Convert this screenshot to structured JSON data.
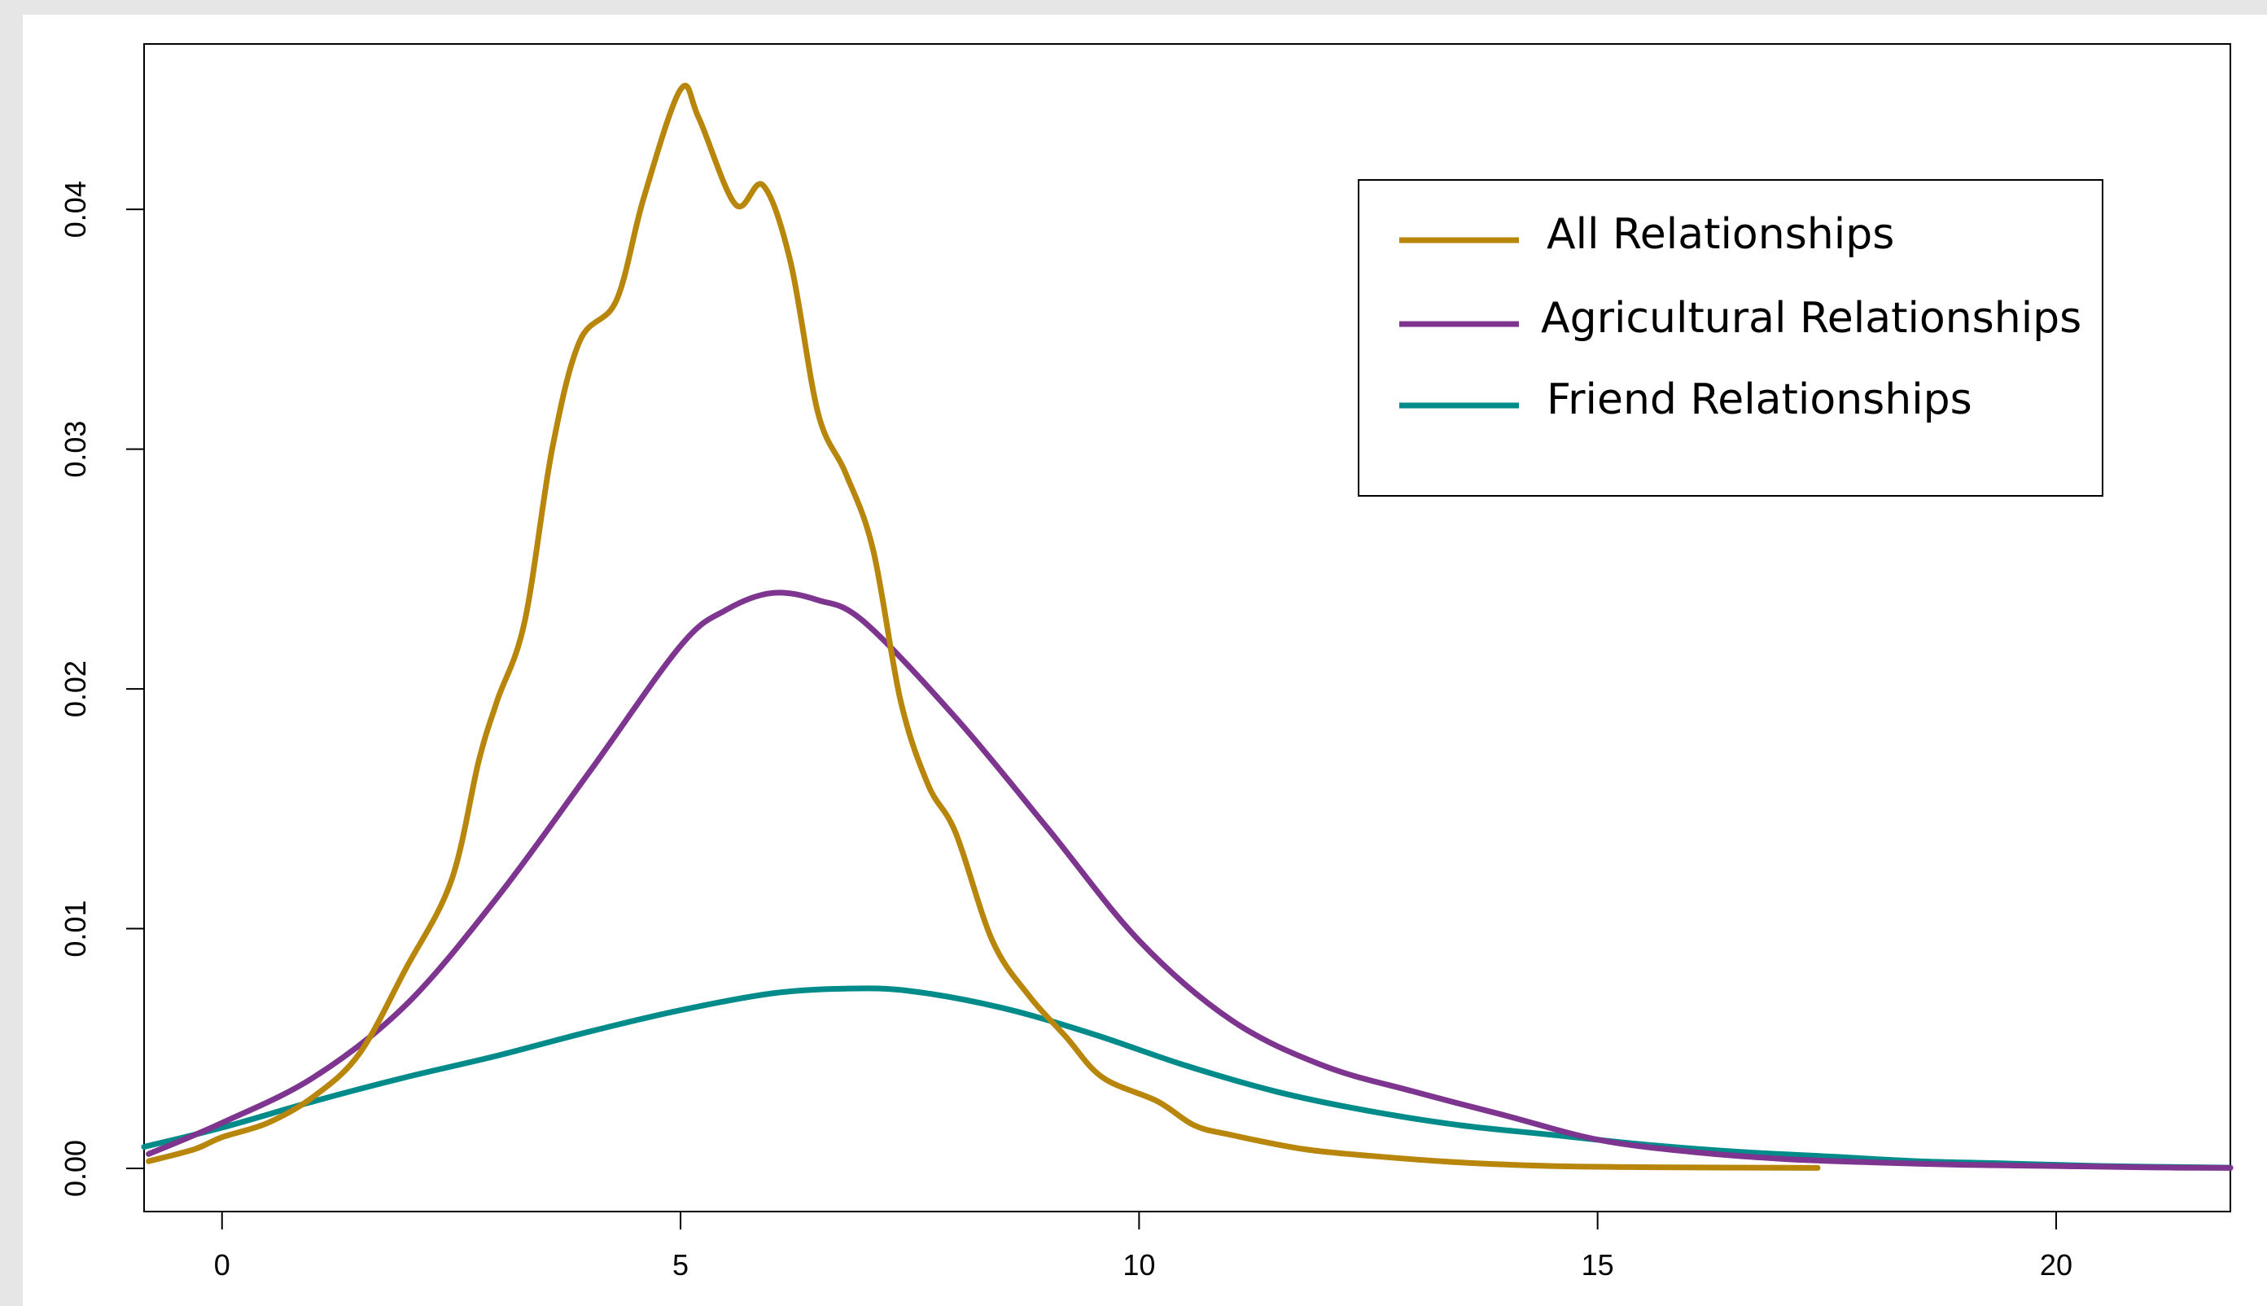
{
  "chart_data": {
    "type": "line",
    "title": "",
    "xlabel": "",
    "ylabel": "",
    "xlim": [
      -0.85,
      21.9
    ],
    "ylim": [
      -0.0018,
      0.0469
    ],
    "x_ticks": [
      0,
      5,
      10,
      15,
      20
    ],
    "x_tick_labels": [
      "0",
      "5",
      "10",
      "15",
      "20"
    ],
    "y_ticks": [
      0.0,
      0.01,
      0.02,
      0.03,
      0.04
    ],
    "y_tick_labels": [
      "0.00",
      "0.01",
      "0.02",
      "0.03",
      "0.04"
    ],
    "grid": false,
    "legend_position": "top-right",
    "series": [
      {
        "name": "All Relationships",
        "color": "#b8860b",
        "points": [
          [
            -0.8,
            0.0003
          ],
          [
            -0.3,
            0.0008
          ],
          [
            0,
            0.0013
          ],
          [
            0.5,
            0.0019
          ],
          [
            1.0,
            0.003
          ],
          [
            1.5,
            0.0048
          ],
          [
            2.0,
            0.0083
          ],
          [
            2.5,
            0.012
          ],
          [
            2.8,
            0.017
          ],
          [
            3.0,
            0.0195
          ],
          [
            3.3,
            0.0228
          ],
          [
            3.6,
            0.03
          ],
          [
            3.9,
            0.0345
          ],
          [
            4.3,
            0.0362
          ],
          [
            4.6,
            0.0405
          ],
          [
            5.0,
            0.045
          ],
          [
            5.2,
            0.0438
          ],
          [
            5.6,
            0.0402
          ],
          [
            5.9,
            0.041
          ],
          [
            6.2,
            0.0378
          ],
          [
            6.5,
            0.0315
          ],
          [
            6.8,
            0.029
          ],
          [
            7.1,
            0.0258
          ],
          [
            7.4,
            0.0195
          ],
          [
            7.7,
            0.016
          ],
          [
            8.0,
            0.014
          ],
          [
            8.4,
            0.0095
          ],
          [
            8.8,
            0.0072
          ],
          [
            9.2,
            0.0055
          ],
          [
            9.6,
            0.0038
          ],
          [
            10.2,
            0.0028
          ],
          [
            10.6,
            0.0018
          ],
          [
            11.0,
            0.0014
          ],
          [
            11.8,
            0.0008
          ],
          [
            12.6,
            0.0005
          ],
          [
            13.5,
            0.00025
          ],
          [
            14.5,
            0.0001
          ],
          [
            15.5,
            5e-05
          ],
          [
            17.4,
            2e-05
          ]
        ]
      },
      {
        "name": "Agricultural Relationships",
        "color": "#7d3590",
        "points": [
          [
            -0.8,
            0.0006
          ],
          [
            0,
            0.0019
          ],
          [
            1.0,
            0.0038
          ],
          [
            2.0,
            0.0068
          ],
          [
            3.0,
            0.0113
          ],
          [
            4.0,
            0.0165
          ],
          [
            5.0,
            0.0218
          ],
          [
            5.5,
            0.0233
          ],
          [
            6.0,
            0.024
          ],
          [
            6.5,
            0.0237
          ],
          [
            7.0,
            0.0228
          ],
          [
            8.0,
            0.0188
          ],
          [
            9.0,
            0.0142
          ],
          [
            10.0,
            0.0095
          ],
          [
            11.0,
            0.0062
          ],
          [
            12.0,
            0.0043
          ],
          [
            13.0,
            0.0032
          ],
          [
            14.0,
            0.0022
          ],
          [
            15.0,
            0.0012
          ],
          [
            16.0,
            0.0007
          ],
          [
            17.0,
            0.0004
          ],
          [
            18.0,
            0.00025
          ],
          [
            19.0,
            0.00015
          ],
          [
            20.0,
            0.0001
          ],
          [
            21.0,
            4e-05
          ],
          [
            21.9,
            2e-05
          ]
        ]
      },
      {
        "name": "Friend Relationships",
        "color": "#008b8b",
        "points": [
          [
            -0.85,
            0.0009
          ],
          [
            0,
            0.0017
          ],
          [
            1.0,
            0.0028
          ],
          [
            2.0,
            0.0038
          ],
          [
            3.0,
            0.0047
          ],
          [
            4.0,
            0.0057
          ],
          [
            5.0,
            0.0066
          ],
          [
            6.0,
            0.0073
          ],
          [
            6.8,
            0.0075
          ],
          [
            7.5,
            0.0074
          ],
          [
            8.5,
            0.0067
          ],
          [
            9.5,
            0.0056
          ],
          [
            10.5,
            0.0043
          ],
          [
            11.5,
            0.0032
          ],
          [
            12.5,
            0.0024
          ],
          [
            13.5,
            0.0018
          ],
          [
            14.5,
            0.0014
          ],
          [
            15.5,
            0.001
          ],
          [
            16.5,
            0.0007
          ],
          [
            17.5,
            0.0005
          ],
          [
            18.5,
            0.0003
          ],
          [
            19.5,
            0.0002
          ],
          [
            20.5,
            0.0001
          ],
          [
            21.9,
            3e-05
          ]
        ]
      }
    ]
  }
}
